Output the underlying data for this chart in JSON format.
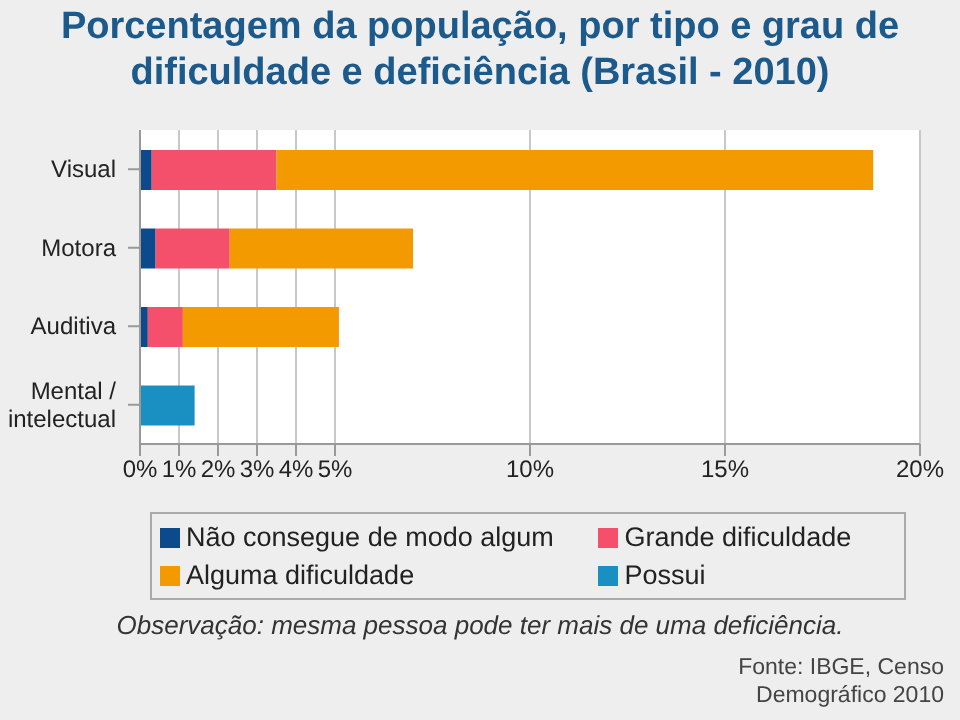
{
  "chart_data": {
    "type": "bar",
    "orientation": "horizontal",
    "stacked": true,
    "title": "Porcentagem da população, por tipo e grau de dificuldade e deficiência (Brasil - 2010)",
    "categories": [
      "Visual",
      "Motora",
      "Auditiva",
      "Mental / intelectual"
    ],
    "series": [
      {
        "name": "Não consegue de modo algum",
        "color": "#0d4a8c",
        "values": [
          0.3,
          0.4,
          0.2,
          null
        ]
      },
      {
        "name": "Grande dificuldade",
        "color": "#f4506c",
        "values": [
          3.2,
          1.9,
          0.9,
          null
        ]
      },
      {
        "name": "Alguma dificuldade",
        "color": "#f29a00",
        "values": [
          15.3,
          4.7,
          4.0,
          null
        ]
      },
      {
        "name": "Possui",
        "color": "#1a8fc2",
        "values": [
          null,
          null,
          null,
          1.4
        ]
      }
    ],
    "xlim": [
      0,
      20
    ],
    "xticks": [
      {
        "value": 0,
        "label": "0%"
      },
      {
        "value": 1,
        "label": "1%"
      },
      {
        "value": 2,
        "label": "2%"
      },
      {
        "value": 3,
        "label": "3%"
      },
      {
        "value": 4,
        "label": "4%"
      },
      {
        "value": 5,
        "label": "5%"
      },
      {
        "value": 10,
        "label": "10%"
      },
      {
        "value": 15,
        "label": "15%"
      },
      {
        "value": 20,
        "label": "20%"
      }
    ],
    "grid": "x",
    "legend": "bottom",
    "annotations": [
      "Observação: mesma pessoa pode ter mais de uma deficiência.",
      "Fonte: IBGE, Censo Demográfico 2010"
    ]
  }
}
